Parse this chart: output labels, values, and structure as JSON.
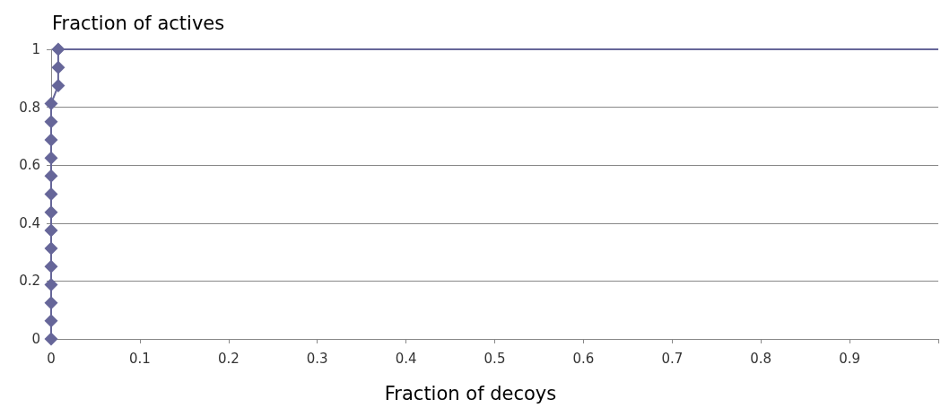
{
  "chart_data": {
    "type": "line",
    "ylabel": "Fraction of actives",
    "xlabel": "Fraction of decoys",
    "series": [
      {
        "color": "#666699",
        "marker": "diamond",
        "x": [
          0,
          0,
          0,
          0,
          0,
          0,
          0,
          0,
          0,
          0,
          0,
          0,
          0,
          0,
          0.008,
          0.008,
          0.008
        ],
        "values": [
          0,
          0.0625,
          0.125,
          0.1875,
          0.25,
          0.3125,
          0.375,
          0.4375,
          0.5,
          0.5625,
          0.625,
          0.6875,
          0.75,
          0.8125,
          0.875,
          0.9375,
          1
        ]
      },
      {
        "color": "#666699",
        "marker": "none",
        "x": [
          0.008,
          1
        ],
        "values": [
          1,
          1
        ]
      }
    ],
    "xlim": [
      0,
      1
    ],
    "xticks": [
      0,
      0.1,
      0.2,
      0.3,
      0.4,
      0.5,
      0.6,
      0.7,
      0.8,
      0.9,
      {
        "value": 1,
        "label": null
      }
    ],
    "ylim": [
      0,
      1
    ],
    "yticks": [
      0,
      0.2,
      0.4,
      0.6,
      0.8,
      1
    ],
    "grid": "y"
  }
}
